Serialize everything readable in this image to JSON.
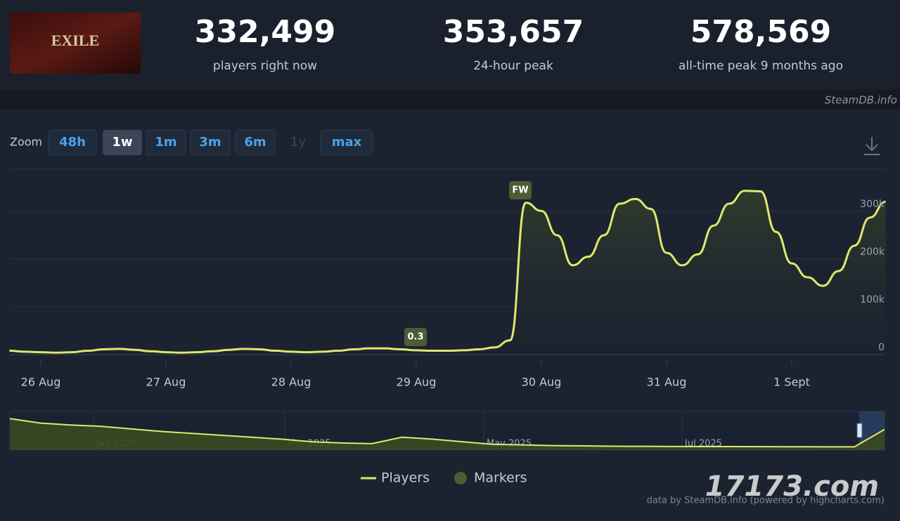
{
  "logo_text": "EXILE",
  "stats": [
    {
      "value": "332,499",
      "label": "players right now"
    },
    {
      "value": "353,657",
      "label": "24-hour peak"
    },
    {
      "value": "578,569",
      "label": "all-time peak 9 months ago"
    }
  ],
  "site": "SteamDB.info",
  "zoom": {
    "label": "Zoom",
    "options": [
      "48h",
      "1w",
      "1m",
      "3m",
      "6m",
      "1y",
      "max"
    ]
  },
  "chart_data": {
    "type": "line",
    "categories": [
      null,
      null,
      "26 Aug",
      null,
      null,
      null,
      null,
      null,
      null,
      null,
      "27 Aug",
      null,
      null,
      null,
      null,
      null,
      null,
      null,
      "28 Aug",
      null,
      null,
      null,
      null,
      null,
      null,
      null,
      "29 Aug",
      null,
      null,
      null,
      null,
      null,
      null,
      null,
      "30 Aug",
      null,
      null,
      null,
      null,
      null,
      null,
      null,
      "31 Aug",
      null,
      null,
      null,
      null,
      null,
      null,
      null,
      "1 Sept",
      null,
      null,
      null,
      null,
      null,
      null
    ],
    "series": [
      {
        "name": "Players",
        "color": "#dfe86c",
        "values": [
          8000,
          6000,
          5000,
          4000,
          5000,
          8000,
          11000,
          12000,
          10000,
          7000,
          5000,
          4000,
          5000,
          7000,
          10000,
          12000,
          11000,
          8000,
          6000,
          5000,
          6000,
          8000,
          11000,
          13000,
          13000,
          11000,
          9000,
          8000,
          8000,
          9000,
          11000,
          15000,
          30000,
          318000,
          301000,
          250000,
          187000,
          205000,
          250000,
          316000,
          326000,
          305000,
          213000,
          187000,
          210000,
          270000,
          316000,
          343000,
          342000,
          257000,
          191000,
          162000,
          144000,
          175000,
          228000,
          287000,
          320000
        ]
      }
    ],
    "ylim": [
      0,
      400000
    ],
    "yticks": [
      0,
      {
        "value": 100000,
        "label": "100k"
      },
      {
        "value": 200000,
        "label": "200k"
      },
      {
        "value": 300000,
        "label": "300k"
      }
    ],
    "grid": true,
    "markers": [
      {
        "label": "FW"
      },
      {
        "label": "0.3"
      }
    ],
    "legend": [
      "Players",
      "Markers"
    ],
    "marker_color": "#4d5c34"
  },
  "navigator": {
    "labels": [
      "Jan 2025",
      "Mar 2025",
      "May 2025",
      "Jul 2025"
    ],
    "ylim": [
      0,
      600000
    ],
    "values": [
      490000,
      420000,
      390000,
      370000,
      330000,
      290000,
      260000,
      230000,
      200000,
      170000,
      130000,
      110000,
      100000,
      200000,
      170000,
      130000,
      90000,
      80000,
      70000,
      65000,
      60000,
      58000,
      56000,
      55000,
      54000,
      53000,
      52000,
      51000,
      50000,
      320000
    ]
  },
  "credit": "data by SteamDB.info (powered by highcharts.com)",
  "watermark": "17173.com"
}
